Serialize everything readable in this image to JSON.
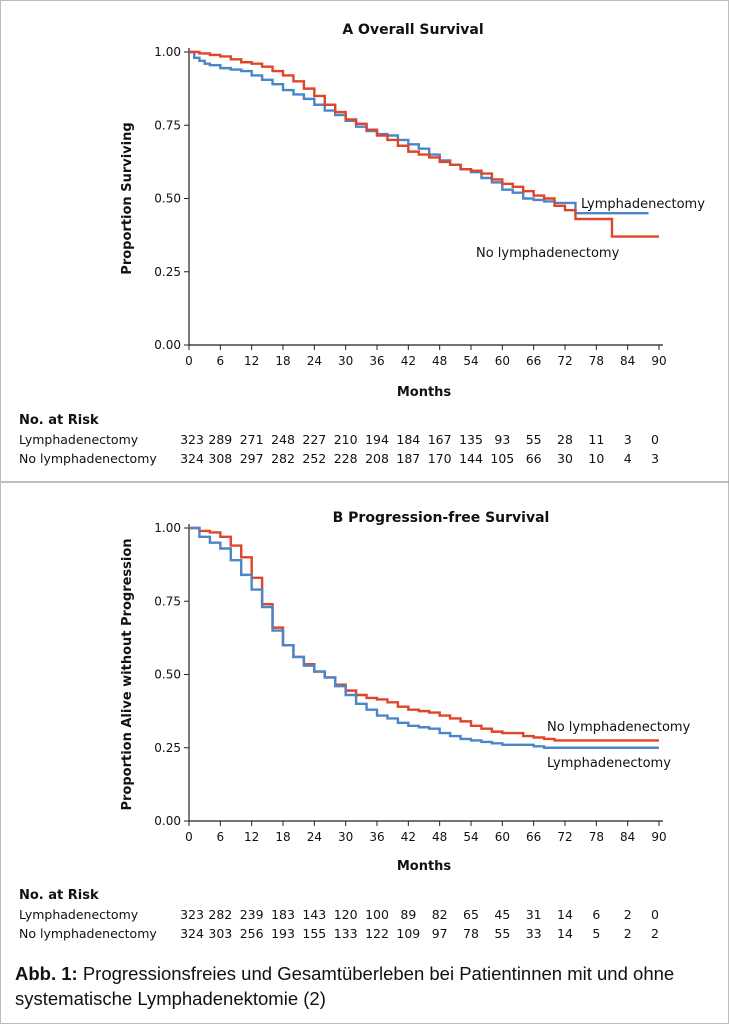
{
  "caption": {
    "prefix": "Abb. 1:",
    "text": "Progressionsfreies und Gesamtüberleben bei Patientinnen mit und ohne systematische Lymphadenektomie (2)"
  },
  "colors": {
    "lymphadenectomy": "#4a86c8",
    "no_lymphadenectomy": "#e0442a"
  },
  "chart_data": [
    {
      "type": "line",
      "panel": "A",
      "title": "Overall Survival",
      "xlabel": "Months",
      "ylabel": "Proportion Surviving",
      "xlim": [
        0,
        90
      ],
      "ylim": [
        0,
        1
      ],
      "xticks": [
        0,
        6,
        12,
        18,
        24,
        30,
        36,
        42,
        48,
        54,
        60,
        66,
        72,
        78,
        84,
        90
      ],
      "yticks": [
        0.0,
        0.25,
        0.5,
        0.75,
        1.0
      ],
      "ytick_labels": [
        "0.00",
        "0.25",
        "0.50",
        "0.75",
        "1.00"
      ],
      "series": [
        {
          "name": "Lymphadenectomy",
          "x": [
            0,
            1,
            2,
            3,
            4,
            6,
            8,
            10,
            12,
            14,
            16,
            18,
            20,
            22,
            24,
            26,
            28,
            30,
            32,
            34,
            36,
            38,
            40,
            42,
            44,
            46,
            48,
            50,
            52,
            54,
            56,
            58,
            60,
            62,
            64,
            66,
            68,
            70,
            72,
            74,
            76,
            78,
            80,
            82,
            84,
            86,
            88
          ],
          "y": [
            1.0,
            0.98,
            0.97,
            0.96,
            0.955,
            0.945,
            0.94,
            0.935,
            0.92,
            0.905,
            0.89,
            0.87,
            0.855,
            0.84,
            0.82,
            0.8,
            0.785,
            0.765,
            0.745,
            0.73,
            0.72,
            0.715,
            0.7,
            0.685,
            0.67,
            0.65,
            0.63,
            0.615,
            0.6,
            0.59,
            0.57,
            0.555,
            0.53,
            0.52,
            0.5,
            0.495,
            0.49,
            0.485,
            0.485,
            0.45,
            0.45,
            0.45,
            0.45,
            0.45,
            0.45,
            0.45,
            0.45
          ]
        },
        {
          "name": "No lymphadenectomy",
          "x": [
            0,
            2,
            4,
            6,
            8,
            10,
            12,
            14,
            16,
            18,
            20,
            22,
            24,
            26,
            28,
            30,
            32,
            34,
            36,
            38,
            40,
            42,
            44,
            46,
            48,
            50,
            52,
            54,
            56,
            58,
            60,
            62,
            64,
            66,
            68,
            70,
            72,
            74,
            76,
            78,
            80,
            81,
            84,
            86,
            88,
            90
          ],
          "y": [
            1.0,
            0.995,
            0.99,
            0.985,
            0.975,
            0.965,
            0.96,
            0.95,
            0.935,
            0.92,
            0.9,
            0.875,
            0.85,
            0.82,
            0.795,
            0.77,
            0.755,
            0.735,
            0.715,
            0.7,
            0.68,
            0.66,
            0.65,
            0.64,
            0.625,
            0.615,
            0.6,
            0.595,
            0.585,
            0.565,
            0.55,
            0.54,
            0.525,
            0.51,
            0.5,
            0.475,
            0.46,
            0.43,
            0.43,
            0.43,
            0.43,
            0.37,
            0.37,
            0.37,
            0.37,
            0.37
          ]
        }
      ],
      "line_labels": [
        "Lymphadenectomy",
        "No lymphadenectomy"
      ],
      "risk_table": {
        "heading": "No. at Risk",
        "rows": [
          {
            "label": "Lymphadenectomy",
            "values": [
              "323",
              "289",
              "271",
              "248",
              "227",
              "210",
              "194",
              "184",
              "167",
              "135",
              "93",
              "55",
              "28",
              "11",
              "3",
              "0"
            ]
          },
          {
            "label": "No lymphadenectomy",
            "values": [
              "324",
              "308",
              "297",
              "282",
              "252",
              "228",
              "208",
              "187",
              "170",
              "144",
              "105",
              "66",
              "30",
              "10",
              "4",
              "3"
            ]
          }
        ]
      }
    },
    {
      "type": "line",
      "panel": "B",
      "title": "Progression-free Survival",
      "xlabel": "Months",
      "ylabel": "Proportion Alive without Progression",
      "xlim": [
        0,
        90
      ],
      "ylim": [
        0,
        1
      ],
      "xticks": [
        0,
        6,
        12,
        18,
        24,
        30,
        36,
        42,
        48,
        54,
        60,
        66,
        72,
        78,
        84,
        90
      ],
      "yticks": [
        0.0,
        0.25,
        0.5,
        0.75,
        1.0
      ],
      "ytick_labels": [
        "0.00",
        "0.25",
        "0.50",
        "0.75",
        "1.00"
      ],
      "series": [
        {
          "name": "No lymphadenectomy",
          "x": [
            0,
            2,
            4,
            6,
            8,
            10,
            12,
            14,
            16,
            18,
            20,
            22,
            24,
            26,
            28,
            30,
            32,
            34,
            36,
            38,
            40,
            42,
            44,
            46,
            48,
            50,
            52,
            54,
            56,
            58,
            60,
            62,
            64,
            66,
            68,
            70,
            72,
            80,
            90
          ],
          "y": [
            1.0,
            0.99,
            0.985,
            0.97,
            0.94,
            0.9,
            0.83,
            0.74,
            0.66,
            0.6,
            0.56,
            0.535,
            0.51,
            0.49,
            0.465,
            0.445,
            0.43,
            0.42,
            0.415,
            0.405,
            0.39,
            0.38,
            0.375,
            0.37,
            0.36,
            0.35,
            0.34,
            0.325,
            0.315,
            0.305,
            0.3,
            0.3,
            0.29,
            0.285,
            0.28,
            0.275,
            0.275,
            0.275,
            0.275
          ]
        },
        {
          "name": "Lymphadenectomy",
          "x": [
            0,
            2,
            4,
            6,
            8,
            10,
            12,
            14,
            16,
            18,
            20,
            22,
            24,
            26,
            28,
            30,
            32,
            34,
            36,
            38,
            40,
            42,
            44,
            46,
            48,
            50,
            52,
            54,
            56,
            58,
            60,
            62,
            64,
            66,
            68,
            70,
            72,
            80,
            90
          ],
          "y": [
            1.0,
            0.97,
            0.95,
            0.93,
            0.89,
            0.84,
            0.79,
            0.73,
            0.65,
            0.6,
            0.56,
            0.53,
            0.51,
            0.49,
            0.46,
            0.43,
            0.4,
            0.38,
            0.36,
            0.35,
            0.335,
            0.325,
            0.32,
            0.315,
            0.3,
            0.29,
            0.28,
            0.275,
            0.27,
            0.265,
            0.26,
            0.26,
            0.26,
            0.255,
            0.25,
            0.25,
            0.25,
            0.25,
            0.25
          ]
        }
      ],
      "line_labels": [
        "No lymphadenectomy",
        "Lymphadenectomy"
      ],
      "risk_table": {
        "heading": "No. at Risk",
        "rows": [
          {
            "label": "Lymphadenectomy",
            "values": [
              "323",
              "282",
              "239",
              "183",
              "143",
              "120",
              "100",
              "89",
              "82",
              "65",
              "45",
              "31",
              "14",
              "6",
              "2",
              "0"
            ]
          },
          {
            "label": "No lymphadenectomy",
            "values": [
              "324",
              "303",
              "256",
              "193",
              "155",
              "133",
              "122",
              "109",
              "97",
              "78",
              "55",
              "33",
              "14",
              "5",
              "2",
              "2"
            ]
          }
        ]
      }
    }
  ]
}
